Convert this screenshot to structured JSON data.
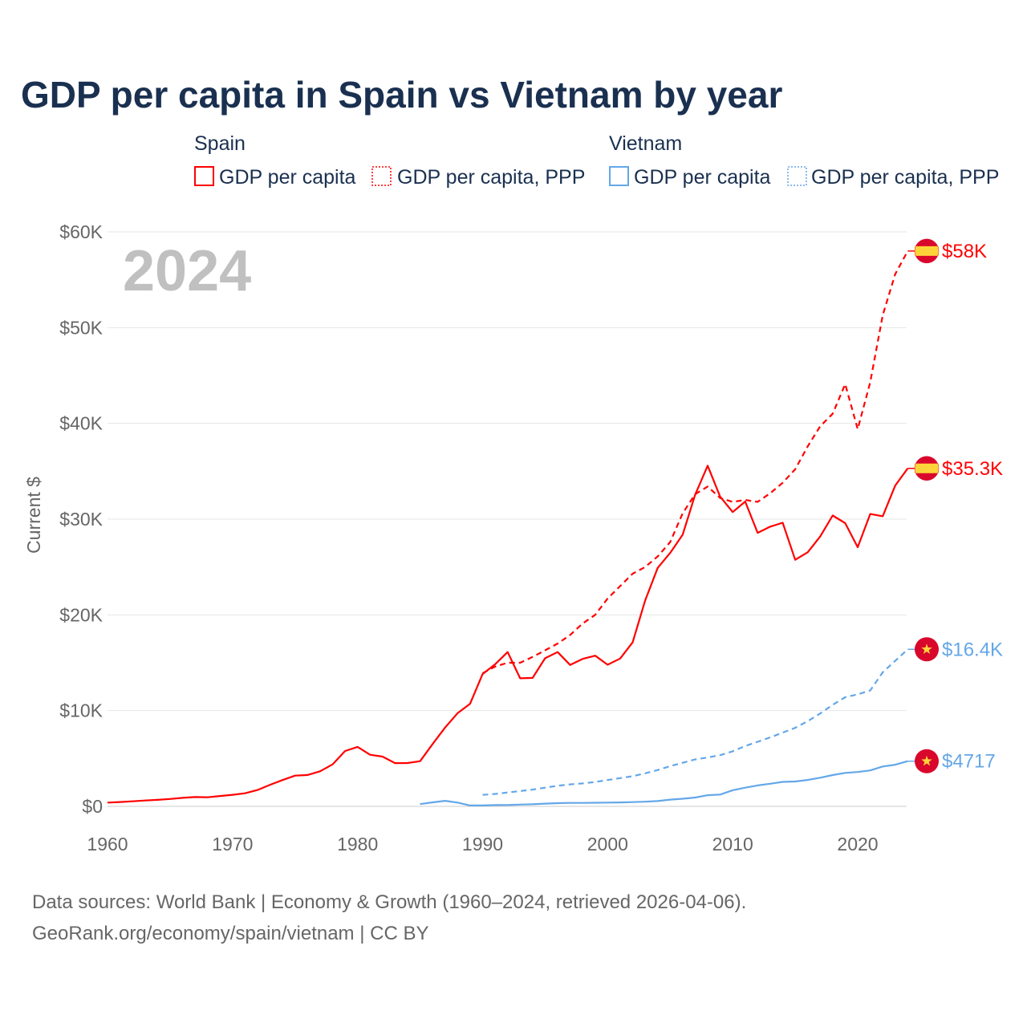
{
  "chart_data": {
    "type": "line",
    "title": "GDP per capita in Spain vs Vietnam by year",
    "ylabel": "Current $",
    "xlabel": "",
    "xlim": [
      1960,
      2024
    ],
    "ylim": [
      0,
      60000
    ],
    "x_ticks": [
      1960,
      1970,
      1980,
      1990,
      2000,
      2010,
      2020
    ],
    "x_tick_labels": [
      "1960",
      "1970",
      "1980",
      "1990",
      "2000",
      "2010",
      "2020"
    ],
    "y_ticks": [
      0,
      10000,
      20000,
      30000,
      40000,
      50000,
      60000
    ],
    "y_tick_labels": [
      "$0",
      "$10K",
      "$20K",
      "$30K",
      "$40K",
      "$50K",
      "$60K"
    ],
    "grid": true,
    "year_watermark": "2024",
    "legend": {
      "placement": "top",
      "groups": [
        {
          "name": "Spain",
          "items": [
            "GDP per capita",
            "GDP per capita, PPP"
          ]
        },
        {
          "name": "Vietnam",
          "items": [
            "GDP per capita",
            "GDP per capita, PPP"
          ]
        }
      ]
    },
    "series": [
      {
        "name": "Spain GDP per capita",
        "country": "Spain",
        "color": "#ff0000",
        "dash": false,
        "flag": "spain-flag",
        "end_label": "$35.3K",
        "start": 1960,
        "values": [
          396,
          450,
          525,
          609,
          675,
          774,
          889,
          968,
          950,
          1077,
          1209,
          1362,
          1708,
          2258,
          2749,
          3209,
          3279,
          3665,
          4386,
          5782,
          6209,
          5390,
          5199,
          4515,
          4526,
          4722,
          6511,
          8236,
          9726,
          10716,
          13821,
          14837,
          16112,
          13372,
          13416,
          15473,
          16118,
          14765,
          15406,
          15737,
          14788,
          15433,
          17130,
          21505,
          24906,
          26469,
          28368,
          32549,
          35579,
          32334,
          30737,
          31832,
          28563,
          29211,
          29625,
          25754,
          26537,
          28186,
          30380,
          29582,
          27063,
          30537,
          30300,
          33509,
          35300
        ]
      },
      {
        "name": "Spain GDP per capita, PPP",
        "country": "Spain",
        "color": "#ff0000",
        "dash": true,
        "flag": "spain-flag",
        "end_label": "$58K",
        "start": 1990,
        "values": [
          13900,
          14600,
          15000,
          15000,
          15600,
          16300,
          17000,
          17900,
          19100,
          20000,
          21700,
          23000,
          24300,
          25000,
          26100,
          27600,
          30600,
          32600,
          33400,
          32200,
          31800,
          32000,
          31800,
          32700,
          33800,
          35200,
          37600,
          39700,
          41000,
          44100,
          39400,
          44300,
          51300,
          55600,
          58000
        ]
      },
      {
        "name": "Vietnam GDP per capita",
        "country": "Vietnam",
        "color": "#64a7e8",
        "dash": false,
        "flag": "vietnam-flag",
        "end_label": "$4717",
        "start": 1985,
        "values": [
          231,
          422,
          582,
          395,
          95,
          95,
          138,
          141,
          185,
          221,
          288,
          337,
          361,
          361,
          374,
          394,
          410,
          440,
          489,
          554,
          700,
          797,
          919,
          1165,
          1232,
          1684,
          1954,
          2190,
          2367,
          2558,
          2595,
          2760,
          2992,
          3267,
          3491,
          3586,
          3757,
          4164,
          4347,
          4717
        ]
      },
      {
        "name": "Vietnam GDP per capita, PPP",
        "country": "Vietnam",
        "color": "#64a7e8",
        "dash": true,
        "flag": "vietnam-flag",
        "end_label": "$16.4K",
        "start": 1990,
        "values": [
          1200,
          1300,
          1450,
          1600,
          1750,
          1950,
          2150,
          2300,
          2400,
          2550,
          2750,
          2950,
          3150,
          3450,
          3800,
          4200,
          4550,
          4900,
          5100,
          5350,
          5750,
          6300,
          6750,
          7200,
          7700,
          8200,
          8900,
          9700,
          10600,
          11400,
          11700,
          12100,
          14000,
          15200,
          16400
        ]
      }
    ],
    "source_lines": [
      "Data sources: World Bank | Economy & Growth (1960–2024, retrieved 2026-04-06).",
      "GeoRank.org/economy/spain/vietnam | CC BY"
    ]
  }
}
